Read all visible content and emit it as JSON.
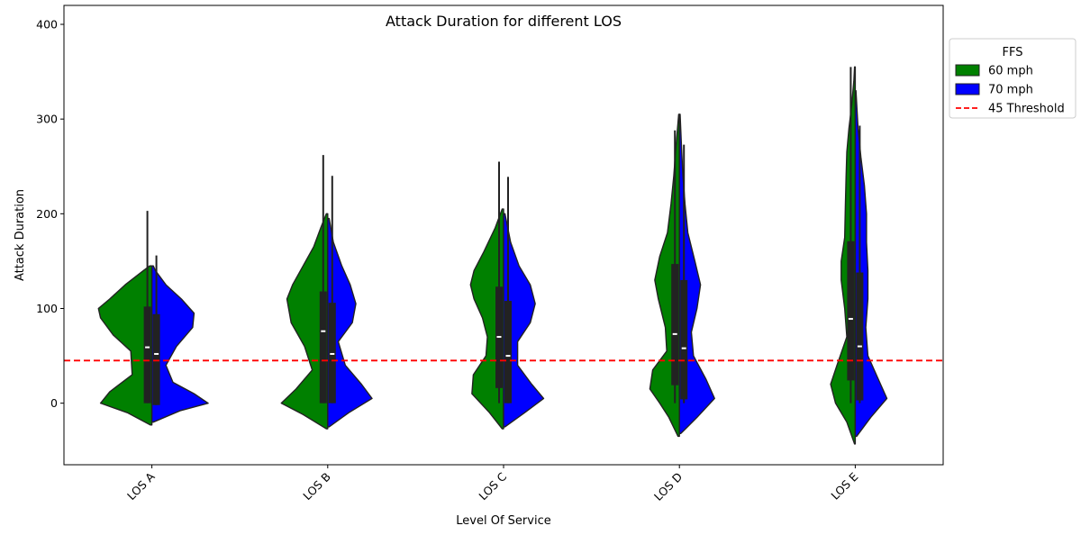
{
  "chart_data": {
    "type": "violin",
    "title": "Attack Duration for different LOS",
    "xlabel": "Level Of Service",
    "ylabel": "Attack Duration",
    "categories": [
      "LOS A",
      "LOS B",
      "LOS C",
      "LOS D",
      "LOS E"
    ],
    "ylim": [
      -65,
      420
    ],
    "yticks": [
      0,
      100,
      200,
      300,
      400
    ],
    "grid": false,
    "legend": {
      "title": "FFS",
      "placement": "outside-top-right",
      "entries": [
        {
          "label": "60 mph",
          "kind": "patch",
          "color": "#008000"
        },
        {
          "label": "70 mph",
          "kind": "patch",
          "color": "#0000ff"
        },
        {
          "label": "45 Threshold",
          "kind": "dashed-line",
          "color": "#ff0000"
        }
      ]
    },
    "threshold": {
      "value": 45,
      "color": "#ff0000"
    },
    "series": [
      {
        "name": "60 mph",
        "side": "left",
        "color": "#008000",
        "violins": [
          {
            "min": -23,
            "max": 145,
            "whisker_low": 0,
            "whisker_high": 203,
            "q1": 0,
            "median": 59,
            "q3": 102,
            "profile": [
              [
                -23,
                0.02
              ],
              [
                -10,
                0.35
              ],
              [
                0,
                0.73
              ],
              [
                12,
                0.6
              ],
              [
                30,
                0.28
              ],
              [
                55,
                0.3
              ],
              [
                72,
                0.55
              ],
              [
                90,
                0.73
              ],
              [
                100,
                0.76
              ],
              [
                110,
                0.6
              ],
              [
                125,
                0.38
              ],
              [
                140,
                0.12
              ],
              [
                145,
                0.03
              ]
            ]
          },
          {
            "min": -27,
            "max": 200,
            "whisker_low": 0,
            "whisker_high": 262,
            "q1": 0,
            "median": 76,
            "q3": 118,
            "profile": [
              [
                -27,
                0.02
              ],
              [
                -12,
                0.35
              ],
              [
                0,
                0.66
              ],
              [
                15,
                0.45
              ],
              [
                35,
                0.22
              ],
              [
                60,
                0.33
              ],
              [
                85,
                0.52
              ],
              [
                110,
                0.58
              ],
              [
                125,
                0.5
              ],
              [
                145,
                0.35
              ],
              [
                165,
                0.2
              ],
              [
                185,
                0.1
              ],
              [
                200,
                0.02
              ]
            ]
          },
          {
            "min": -27,
            "max": 205,
            "whisker_low": 0,
            "whisker_high": 255,
            "q1": 16,
            "median": 70,
            "q3": 123,
            "profile": [
              [
                -27,
                0.02
              ],
              [
                -10,
                0.2
              ],
              [
                10,
                0.45
              ],
              [
                30,
                0.43
              ],
              [
                50,
                0.25
              ],
              [
                70,
                0.23
              ],
              [
                90,
                0.3
              ],
              [
                110,
                0.42
              ],
              [
                125,
                0.47
              ],
              [
                140,
                0.42
              ],
              [
                160,
                0.28
              ],
              [
                185,
                0.12
              ],
              [
                205,
                0.02
              ]
            ]
          },
          {
            "min": -35,
            "max": 305,
            "whisker_low": 0,
            "whisker_high": 288,
            "q1": 19,
            "median": 73,
            "q3": 147,
            "profile": [
              [
                -35,
                0.02
              ],
              [
                -15,
                0.15
              ],
              [
                0,
                0.28
              ],
              [
                15,
                0.42
              ],
              [
                35,
                0.38
              ],
              [
                55,
                0.18
              ],
              [
                80,
                0.2
              ],
              [
                110,
                0.3
              ],
              [
                130,
                0.35
              ],
              [
                155,
                0.28
              ],
              [
                180,
                0.17
              ],
              [
                210,
                0.12
              ],
              [
                240,
                0.08
              ],
              [
                270,
                0.05
              ],
              [
                305,
                0.01
              ]
            ]
          },
          {
            "min": -43,
            "max": 355,
            "whisker_low": 0,
            "whisker_high": 355,
            "q1": 24,
            "median": 89,
            "q3": 171,
            "profile": [
              [
                -43,
                0.01
              ],
              [
                -20,
                0.12
              ],
              [
                0,
                0.28
              ],
              [
                20,
                0.35
              ],
              [
                40,
                0.26
              ],
              [
                70,
                0.12
              ],
              [
                100,
                0.15
              ],
              [
                130,
                0.2
              ],
              [
                150,
                0.2
              ],
              [
                175,
                0.15
              ],
              [
                210,
                0.14
              ],
              [
                240,
                0.13
              ],
              [
                265,
                0.12
              ],
              [
                290,
                0.09
              ],
              [
                315,
                0.05
              ],
              [
                340,
                0.02
              ],
              [
                355,
                0.01
              ]
            ]
          }
        ]
      },
      {
        "name": "70 mph",
        "side": "right",
        "color": "#0000ff",
        "violins": [
          {
            "min": -20,
            "max": 145,
            "whisker_low": -2,
            "whisker_high": 156,
            "q1": -2,
            "median": 52,
            "q3": 94,
            "profile": [
              [
                -20,
                0.02
              ],
              [
                -8,
                0.4
              ],
              [
                0,
                0.8
              ],
              [
                10,
                0.6
              ],
              [
                22,
                0.3
              ],
              [
                40,
                0.2
              ],
              [
                60,
                0.35
              ],
              [
                80,
                0.58
              ],
              [
                95,
                0.6
              ],
              [
                110,
                0.42
              ],
              [
                125,
                0.2
              ],
              [
                140,
                0.05
              ],
              [
                145,
                0.02
              ]
            ]
          },
          {
            "min": -25,
            "max": 195,
            "whisker_low": 0,
            "whisker_high": 240,
            "q1": 0,
            "median": 52,
            "q3": 106,
            "profile": [
              [
                -25,
                0.02
              ],
              [
                -10,
                0.3
              ],
              [
                5,
                0.63
              ],
              [
                20,
                0.48
              ],
              [
                40,
                0.25
              ],
              [
                65,
                0.15
              ],
              [
                85,
                0.35
              ],
              [
                105,
                0.4
              ],
              [
                125,
                0.32
              ],
              [
                145,
                0.2
              ],
              [
                170,
                0.08
              ],
              [
                195,
                0.02
              ]
            ]
          },
          {
            "min": -25,
            "max": 200,
            "whisker_low": 0,
            "whisker_high": 239,
            "q1": 0,
            "median": 50,
            "q3": 108,
            "profile": [
              [
                -25,
                0.02
              ],
              [
                -10,
                0.3
              ],
              [
                5,
                0.57
              ],
              [
                20,
                0.4
              ],
              [
                40,
                0.2
              ],
              [
                65,
                0.2
              ],
              [
                85,
                0.38
              ],
              [
                105,
                0.45
              ],
              [
                125,
                0.38
              ],
              [
                145,
                0.22
              ],
              [
                170,
                0.1
              ],
              [
                200,
                0.02
              ]
            ]
          },
          {
            "min": -32,
            "max": 305,
            "whisker_low": 0,
            "whisker_high": 273,
            "q1": 4,
            "median": 58,
            "q3": 130,
            "profile": [
              [
                -32,
                0.02
              ],
              [
                -15,
                0.25
              ],
              [
                5,
                0.5
              ],
              [
                25,
                0.38
              ],
              [
                50,
                0.2
              ],
              [
                75,
                0.17
              ],
              [
                100,
                0.25
              ],
              [
                125,
                0.3
              ],
              [
                150,
                0.22
              ],
              [
                180,
                0.12
              ],
              [
                210,
                0.08
              ],
              [
                240,
                0.05
              ],
              [
                270,
                0.03
              ],
              [
                305,
                0.01
              ]
            ]
          },
          {
            "min": -35,
            "max": 330,
            "whisker_low": 0,
            "whisker_high": 293,
            "q1": 3,
            "median": 60,
            "q3": 138,
            "profile": [
              [
                -35,
                0.02
              ],
              [
                -15,
                0.22
              ],
              [
                5,
                0.45
              ],
              [
                25,
                0.33
              ],
              [
                50,
                0.18
              ],
              [
                80,
                0.15
              ],
              [
                110,
                0.18
              ],
              [
                140,
                0.18
              ],
              [
                170,
                0.16
              ],
              [
                200,
                0.16
              ],
              [
                230,
                0.13
              ],
              [
                260,
                0.08
              ],
              [
                290,
                0.04
              ],
              [
                330,
                0.01
              ]
            ]
          }
        ]
      }
    ]
  }
}
